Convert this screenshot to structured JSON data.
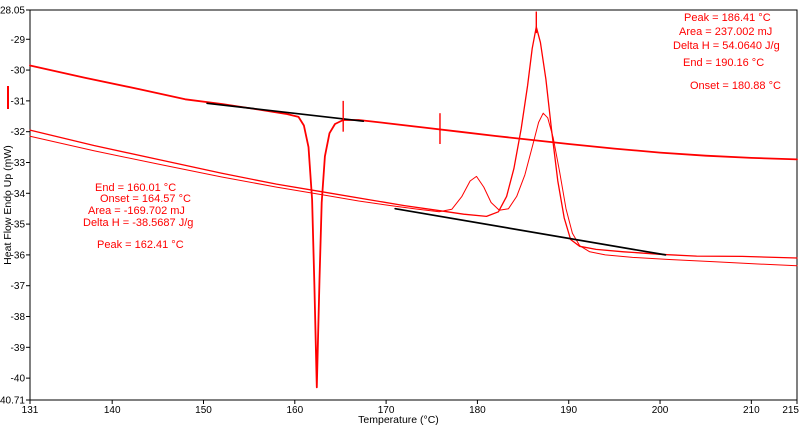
{
  "chart_data": {
    "type": "line",
    "title": "",
    "xlabel": "Temperature (°C)",
    "ylabel": "Heat Flow Endo Up (mW)",
    "xlim": [
      131,
      215
    ],
    "ylim": [
      -40.71,
      -28.05
    ],
    "grid": false,
    "x_ticks": [
      131,
      140,
      150,
      160,
      170,
      180,
      190,
      200,
      210,
      215
    ],
    "x_tick_labels": [
      "131",
      "140",
      "150",
      "160",
      "170",
      "180",
      "190",
      "200",
      "210",
      "215"
    ],
    "y_ticks": [
      -28.05,
      -29,
      -30,
      -31,
      -32,
      -33,
      -34,
      -35,
      -36,
      -37,
      -38,
      -39,
      -40,
      -40.71
    ],
    "y_tick_labels": [
      "-28.05",
      "-29",
      "-30",
      "-31",
      "-32",
      "-33",
      "-34",
      "-35",
      "-36",
      "-37",
      "-38",
      "-39",
      "-40",
      "-40.71"
    ],
    "colors": {
      "trace": "#ff0000",
      "baseline": "#000000",
      "axis": "#000000",
      "annotation": "#ff0000",
      "background": "#ffffff"
    },
    "series": [
      {
        "name": "cooling-curve-crystallization",
        "color": "#ff0000",
        "width": 1.8,
        "points": [
          [
            131,
            -29.85
          ],
          [
            137,
            -30.25
          ],
          [
            143,
            -30.62
          ],
          [
            148,
            -30.95
          ],
          [
            152,
            -31.1
          ],
          [
            156,
            -31.28
          ],
          [
            159,
            -31.42
          ],
          [
            160.4,
            -31.52
          ],
          [
            161.0,
            -31.8
          ],
          [
            161.5,
            -32.5
          ],
          [
            161.9,
            -34.2
          ],
          [
            162.15,
            -37.0
          ],
          [
            162.41,
            -40.3
          ],
          [
            162.7,
            -36.8
          ],
          [
            162.95,
            -34.3
          ],
          [
            163.3,
            -32.8
          ],
          [
            163.8,
            -32.05
          ],
          [
            164.4,
            -31.75
          ],
          [
            165.3,
            -31.62
          ],
          [
            167,
            -31.62
          ],
          [
            170,
            -31.72
          ],
          [
            174,
            -31.86
          ],
          [
            178,
            -32.0
          ],
          [
            182,
            -32.14
          ],
          [
            186,
            -32.27
          ],
          [
            190,
            -32.4
          ],
          [
            195,
            -32.55
          ],
          [
            200,
            -32.68
          ],
          [
            205,
            -32.78
          ],
          [
            210,
            -32.85
          ],
          [
            215,
            -32.9
          ]
        ]
      },
      {
        "name": "heating-curve-first-melt",
        "color": "#ff0000",
        "width": 1.3,
        "points": [
          [
            131,
            -31.95
          ],
          [
            138,
            -32.45
          ],
          [
            145,
            -32.9
          ],
          [
            152,
            -33.35
          ],
          [
            158,
            -33.7
          ],
          [
            163,
            -33.95
          ],
          [
            168,
            -34.2
          ],
          [
            172,
            -34.4
          ],
          [
            175.5,
            -34.55
          ],
          [
            178.5,
            -34.68
          ],
          [
            181,
            -34.75
          ],
          [
            182.3,
            -34.6
          ],
          [
            183.2,
            -34.1
          ],
          [
            184,
            -33.2
          ],
          [
            184.8,
            -31.9
          ],
          [
            185.5,
            -30.5
          ],
          [
            186.0,
            -29.3
          ],
          [
            186.45,
            -28.6
          ],
          [
            186.9,
            -29.1
          ],
          [
            187.5,
            -30.3
          ],
          [
            188.1,
            -31.9
          ],
          [
            188.8,
            -33.6
          ],
          [
            189.5,
            -34.8
          ],
          [
            190.2,
            -35.5
          ],
          [
            191.2,
            -35.72
          ],
          [
            193,
            -35.82
          ],
          [
            196,
            -35.9
          ],
          [
            200,
            -35.98
          ],
          [
            204,
            -36.04
          ],
          [
            209,
            -36.05
          ],
          [
            215,
            -36.1
          ]
        ]
      },
      {
        "name": "heating-curve-second-melt",
        "color": "#ff0000",
        "width": 1.0,
        "points": [
          [
            131,
            -32.15
          ],
          [
            138,
            -32.62
          ],
          [
            145,
            -33.05
          ],
          [
            152,
            -33.47
          ],
          [
            158,
            -33.8
          ],
          [
            163,
            -34.05
          ],
          [
            167,
            -34.25
          ],
          [
            170.5,
            -34.4
          ],
          [
            173.5,
            -34.52
          ],
          [
            175.8,
            -34.6
          ],
          [
            177.2,
            -34.52
          ],
          [
            178.3,
            -34.1
          ],
          [
            179.2,
            -33.6
          ],
          [
            179.9,
            -33.45
          ],
          [
            180.7,
            -33.8
          ],
          [
            181.5,
            -34.3
          ],
          [
            182.4,
            -34.55
          ],
          [
            183.4,
            -34.5
          ],
          [
            184.3,
            -34.1
          ],
          [
            185.2,
            -33.4
          ],
          [
            186.0,
            -32.5
          ],
          [
            186.7,
            -31.7
          ],
          [
            187.2,
            -31.4
          ],
          [
            187.7,
            -31.55
          ],
          [
            188.3,
            -32.2
          ],
          [
            189.0,
            -33.3
          ],
          [
            189.7,
            -34.5
          ],
          [
            190.4,
            -35.3
          ],
          [
            191.2,
            -35.7
          ],
          [
            192.3,
            -35.9
          ],
          [
            194,
            -36.0
          ],
          [
            197,
            -36.08
          ],
          [
            201,
            -36.15
          ],
          [
            206,
            -36.22
          ],
          [
            211,
            -36.3
          ],
          [
            215,
            -36.35
          ]
        ]
      },
      {
        "name": "integration-baseline-exotherm",
        "color": "#000000",
        "width": 1.7,
        "points": [
          [
            150.4,
            -31.08
          ],
          [
            167.5,
            -31.66
          ]
        ]
      },
      {
        "name": "integration-baseline-endotherm",
        "color": "#000000",
        "width": 1.7,
        "points": [
          [
            171,
            -34.5
          ],
          [
            200.6,
            -36.0
          ]
        ]
      }
    ],
    "markers": [
      {
        "name": "limit-marker-onset",
        "x": 165.3,
        "y1": -31.0,
        "y2": -32.0
      },
      {
        "name": "limit-marker-range",
        "x": 175.9,
        "y1": -31.4,
        "y2": -32.4
      },
      {
        "name": "peak-apex-marker",
        "x": 186.45,
        "y1": -28.1,
        "y2": -28.8
      }
    ],
    "annotations": {
      "exotherm": {
        "lines": [
          "End = 160.01 °C",
          "Onset = 164.57 °C",
          "Area = -169.702 mJ",
          "Delta H = -38.5687 J/g",
          "Peak = 162.41 °C"
        ]
      },
      "endotherm": {
        "lines": [
          "Peak = 186.41 °C",
          "Area = 237.002 mJ",
          "Delta H = 54.0640 J/g",
          "End = 190.16 °C",
          "Onset = 180.88 °C"
        ]
      }
    }
  }
}
